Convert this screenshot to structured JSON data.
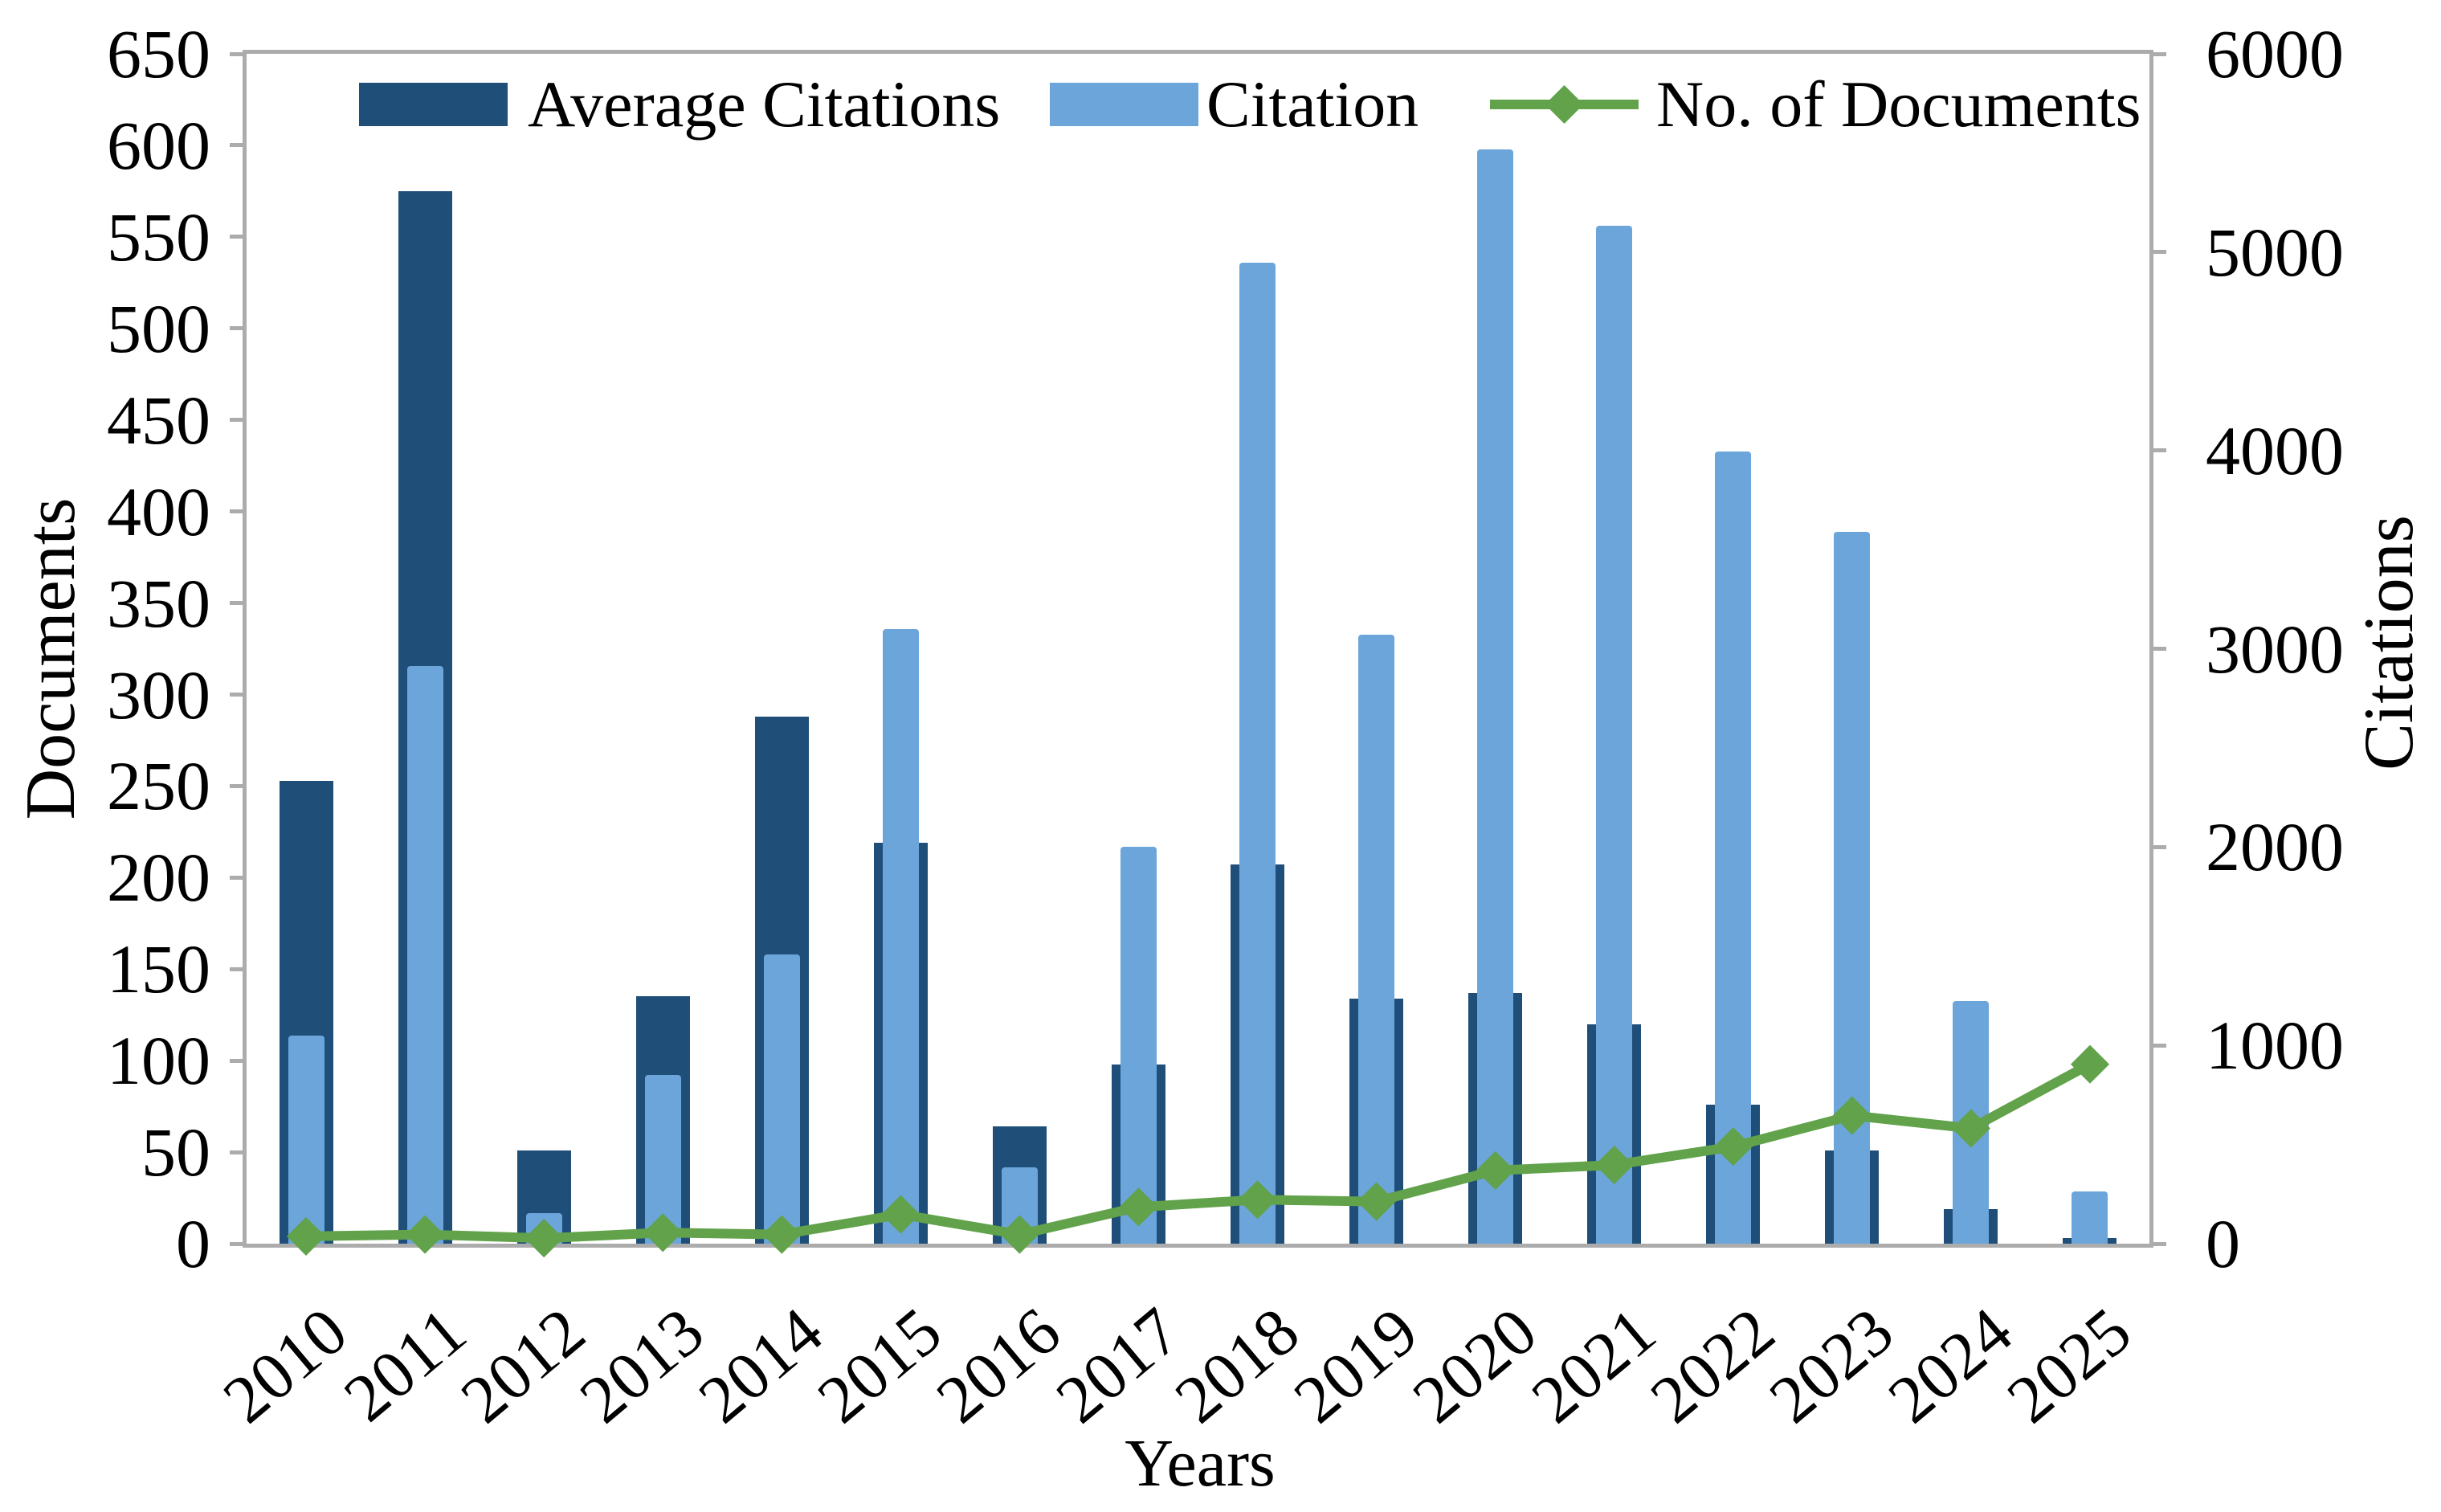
{
  "chart_data": {
    "type": "bar+line-combo",
    "title": "",
    "categories": [
      "2010",
      "2011",
      "2012",
      "2013",
      "2014",
      "2015",
      "2016",
      "2017",
      "2018",
      "2019",
      "2020",
      "2021",
      "2022",
      "2023",
      "2024",
      "2025"
    ],
    "series": [
      {
        "name": "Average Citations",
        "type": "bar",
        "axis": "left",
        "color": "#1F4E79",
        "values": [
          253,
          575,
          51,
          135,
          288,
          219,
          64,
          98,
          207,
          134,
          137,
          120,
          76,
          51,
          19,
          3
        ]
      },
      {
        "name": "Citation",
        "type": "bar",
        "axis": "right",
        "color": "#6BA5DA",
        "values": [
          1050,
          2915,
          155,
          850,
          1460,
          3100,
          385,
          2000,
          4945,
          3070,
          5520,
          5135,
          3995,
          3590,
          1225,
          265
        ]
      },
      {
        "name": "No. of Documents",
        "type": "line",
        "axis": "left",
        "marker": "diamond",
        "color": "#61A24B",
        "values": [
          4,
          5,
          3,
          6,
          5,
          16,
          5,
          20,
          24,
          23,
          40,
          43,
          53,
          70,
          63,
          98
        ]
      }
    ],
    "xlabel": "Years",
    "ylabel_left": "Documents",
    "ylabel_right": "Citations",
    "ylim_left": [
      0,
      650
    ],
    "ytick_step_left": 50,
    "ylim_right": [
      0,
      6000
    ],
    "ytick_step_right": 1000,
    "yticks_left": [
      "0",
      "50",
      "100",
      "150",
      "200",
      "250",
      "300",
      "350",
      "400",
      "450",
      "500",
      "550",
      "600",
      "650"
    ],
    "yticks_right": [
      "0",
      "1000",
      "2000",
      "3000",
      "4000",
      "5000",
      "6000"
    ],
    "grid": false,
    "legend_position": "top-inside",
    "frame_color": "#ACACAC"
  }
}
